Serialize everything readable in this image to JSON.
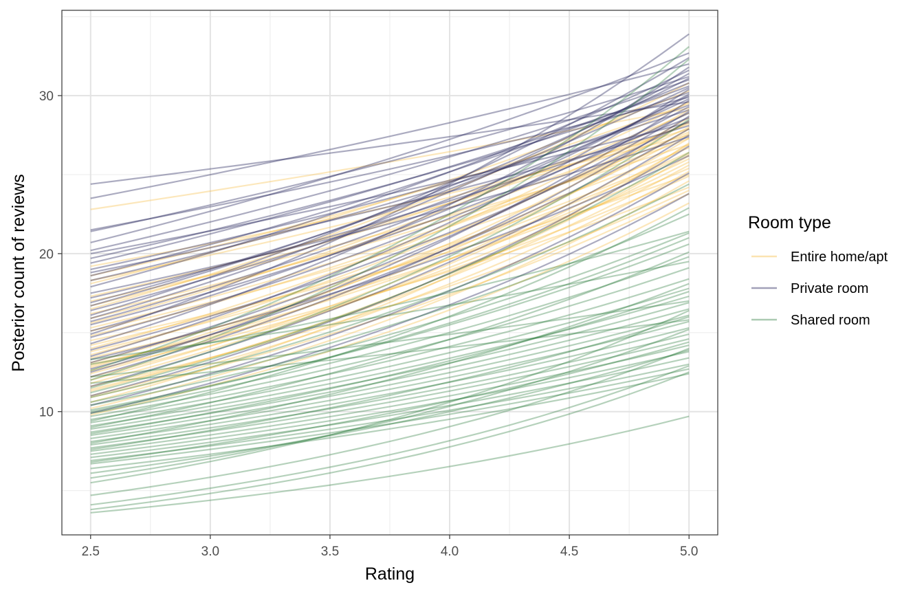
{
  "chart_data": {
    "type": "line",
    "xlabel": "Rating",
    "ylabel": "Posterior count of reviews",
    "xlim": [
      2.38,
      5.12
    ],
    "ylim": [
      2.2,
      35.4
    ],
    "x_ticks": [
      2.5,
      3.0,
      3.5,
      4.0,
      4.5,
      5.0
    ],
    "x_tick_labels": [
      "2.5",
      "3.0",
      "3.5",
      "4.0",
      "4.5",
      "5.0"
    ],
    "y_ticks": [
      10,
      20,
      30
    ],
    "y_tick_labels": [
      "10",
      "20",
      "30"
    ],
    "grid": true,
    "legend": {
      "title": "Room type",
      "position": "right"
    },
    "x": [
      2.5,
      5.0
    ],
    "curve": "exponential",
    "series": [
      {
        "name": "Entire home/apt",
        "color": "#F5B93D",
        "line_alpha": 0.35,
        "draws": [
          [
            22.8,
            29.2
          ],
          [
            18.1,
            30.3
          ],
          [
            18.6,
            29.5
          ],
          [
            19.2,
            27.5
          ],
          [
            16.7,
            28.9
          ],
          [
            15.6,
            29.6
          ],
          [
            17.3,
            28.2
          ],
          [
            14.8,
            28.0
          ],
          [
            13.6,
            28.6
          ],
          [
            16.2,
            27.3
          ],
          [
            15.1,
            26.7
          ],
          [
            13.1,
            27.6
          ],
          [
            12.4,
            27.9
          ],
          [
            14.2,
            26.4
          ],
          [
            12.9,
            26.0
          ],
          [
            11.8,
            26.9
          ],
          [
            13.4,
            25.4
          ],
          [
            12.2,
            25.8
          ],
          [
            11.3,
            26.2
          ],
          [
            10.6,
            27.0
          ],
          [
            12.6,
            24.9
          ],
          [
            11.0,
            25.2
          ],
          [
            10.2,
            24.6
          ],
          [
            9.8,
            23.2
          ],
          [
            14.5,
            25.0
          ],
          [
            13.0,
            24.2
          ],
          [
            11.6,
            24.0
          ],
          [
            10.9,
            23.8
          ],
          [
            18.3,
            27.9
          ],
          [
            17.0,
            26.9
          ],
          [
            15.9,
            28.3
          ],
          [
            14.0,
            29.1
          ],
          [
            12.8,
            28.4
          ],
          [
            16.5,
            30.8
          ],
          [
            13.8,
            26.3
          ],
          [
            12.0,
            27.3
          ],
          [
            15.3,
            27.7
          ],
          [
            11.4,
            25.6
          ]
        ]
      },
      {
        "name": "Private room",
        "color": "#2E2D62",
        "line_alpha": 0.4,
        "draws": [
          [
            24.4,
            29.6
          ],
          [
            23.5,
            32.0
          ],
          [
            21.4,
            31.2
          ],
          [
            21.5,
            29.9
          ],
          [
            20.7,
            32.7
          ],
          [
            20.2,
            31.0
          ],
          [
            19.7,
            30.2
          ],
          [
            19.0,
            29.1
          ],
          [
            18.6,
            30.8
          ],
          [
            18.3,
            29.4
          ],
          [
            17.9,
            31.6
          ],
          [
            17.2,
            28.6
          ],
          [
            16.9,
            30.5
          ],
          [
            16.4,
            29.8
          ],
          [
            15.9,
            31.4
          ],
          [
            15.5,
            28.9
          ],
          [
            15.1,
            30.1
          ],
          [
            14.7,
            29.3
          ],
          [
            14.3,
            31.8
          ],
          [
            13.9,
            28.4
          ],
          [
            13.5,
            30.4
          ],
          [
            13.1,
            29.0
          ],
          [
            12.7,
            27.9
          ],
          [
            12.2,
            28.7
          ],
          [
            11.6,
            27.5
          ],
          [
            11.0,
            26.8
          ],
          [
            10.4,
            25.1
          ],
          [
            9.9,
            23.8
          ],
          [
            14.9,
            33.9
          ],
          [
            16.1,
            32.4
          ],
          [
            18.8,
            28.1
          ],
          [
            17.5,
            27.4
          ],
          [
            20.0,
            28.3
          ],
          [
            13.3,
            26.2
          ],
          [
            15.7,
            30.0
          ],
          [
            12.5,
            29.7
          ],
          [
            19.4,
            30.6
          ],
          [
            16.7,
            31.1
          ]
        ]
      },
      {
        "name": "Shared room",
        "color": "#2B7A3C",
        "line_alpha": 0.35,
        "draws": [
          [
            12.6,
            33.1
          ],
          [
            12.0,
            32.3
          ],
          [
            11.5,
            28.5
          ],
          [
            11.2,
            26.4
          ],
          [
            10.9,
            24.4
          ],
          [
            10.6,
            22.5
          ],
          [
            10.4,
            21.3
          ],
          [
            10.1,
            20.6
          ],
          [
            9.9,
            19.8
          ],
          [
            9.7,
            19.1
          ],
          [
            9.5,
            18.4
          ],
          [
            9.3,
            17.8
          ],
          [
            9.1,
            17.3
          ],
          [
            8.9,
            16.9
          ],
          [
            8.7,
            16.5
          ],
          [
            8.5,
            16.1
          ],
          [
            8.3,
            15.7
          ],
          [
            8.1,
            15.3
          ],
          [
            7.9,
            14.9
          ],
          [
            7.7,
            14.6
          ],
          [
            7.5,
            14.2
          ],
          [
            7.3,
            13.8
          ],
          [
            7.1,
            13.4
          ],
          [
            6.9,
            13.0
          ],
          [
            6.7,
            12.7
          ],
          [
            6.4,
            12.4
          ],
          [
            6.1,
            13.9
          ],
          [
            5.8,
            15.2
          ],
          [
            5.5,
            16.4
          ],
          [
            4.7,
            14.0
          ],
          [
            4.1,
            12.9
          ],
          [
            3.8,
            12.5
          ],
          [
            3.6,
            9.7
          ],
          [
            8.0,
            18.1
          ],
          [
            9.0,
            20.1
          ],
          [
            10.0,
            21.0
          ],
          [
            12.2,
            17.0
          ],
          [
            11.8,
            15.8
          ],
          [
            13.0,
            21.4
          ],
          [
            13.3,
            19.5
          ],
          [
            8.6,
            17.6
          ],
          [
            7.6,
            16.0
          ],
          [
            6.8,
            14.4
          ],
          [
            9.4,
            22.9
          ]
        ]
      }
    ]
  }
}
